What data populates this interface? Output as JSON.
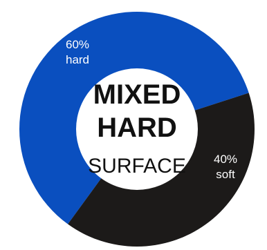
{
  "chart_data": {
    "type": "pie",
    "title_lines": [
      "MIXED",
      "HARD",
      "SURFACE"
    ],
    "slices": [
      {
        "name": "hard",
        "value": 60,
        "label_pct": "60%",
        "label_name": "hard",
        "color": "#0a4fbf"
      },
      {
        "name": "soft",
        "value": 40,
        "label_pct": "40%",
        "label_name": "soft",
        "color": "#1c1a19"
      }
    ]
  }
}
